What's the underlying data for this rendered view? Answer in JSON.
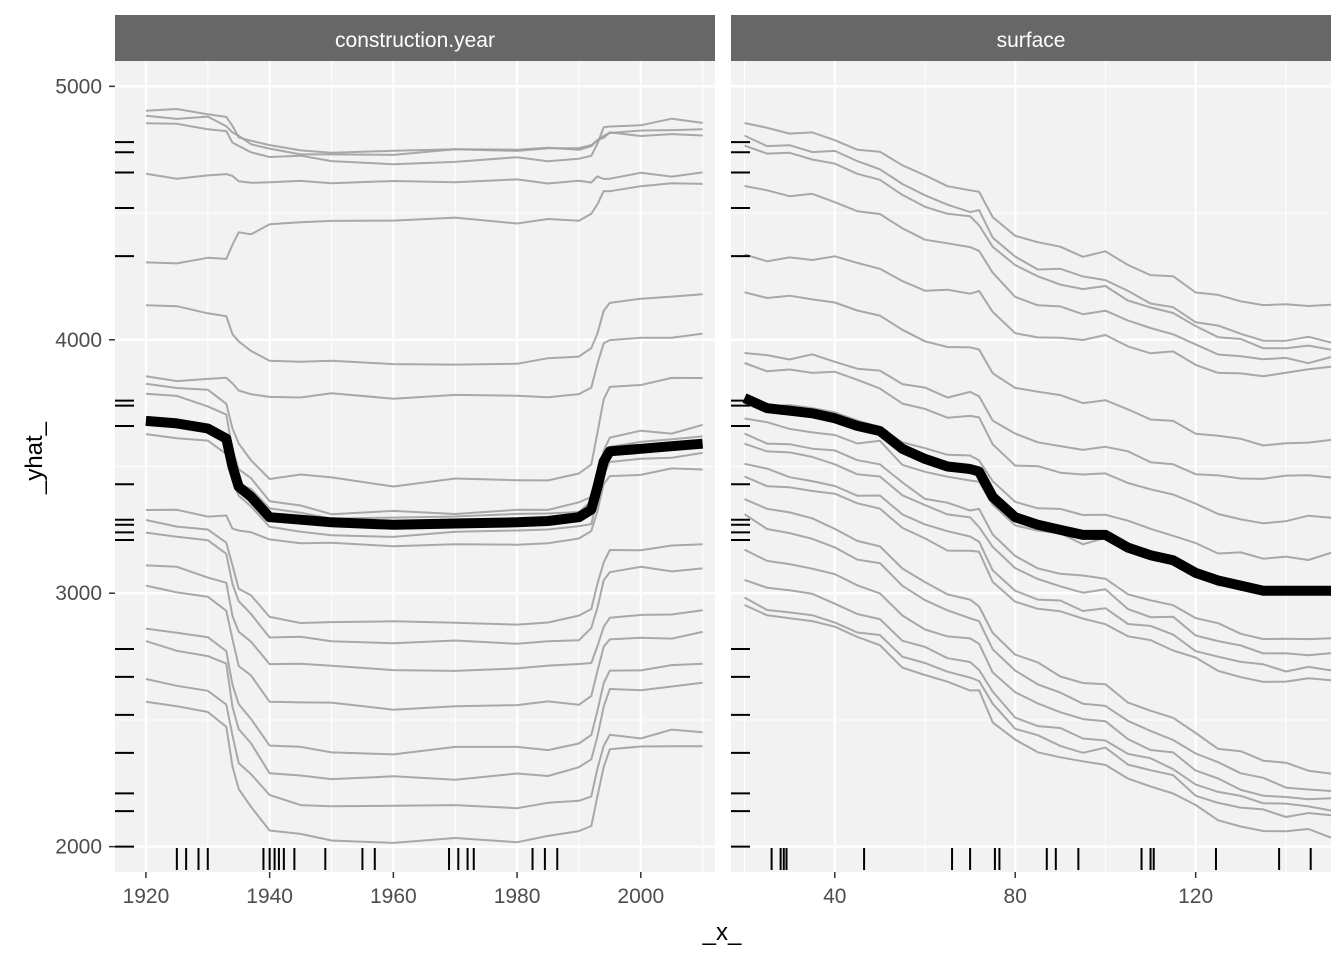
{
  "colors": {
    "panel_bg": "#f2f2f2",
    "strip_bg": "#676767",
    "strip_text": "#ffffff",
    "grid": "#ffffff",
    "ice_line": "#a0a0a0",
    "pdp_line": "#000000",
    "axis_text": "#4d4d4d",
    "axis_title": "#000000"
  },
  "chart_data": [
    {
      "type": "line",
      "panel": "construction.year",
      "xlabel": "_x_",
      "ylabel": "_yhat_",
      "xlim": [
        1915,
        2012
      ],
      "ylim": [
        1900,
        5100
      ],
      "x_ticks": [
        1920,
        1940,
        1960,
        1980,
        2000
      ],
      "y_ticks": [
        2000,
        3000,
        4000,
        5000
      ],
      "x_points": [
        1920,
        1925,
        1930,
        1933,
        1934,
        1935,
        1937,
        1940,
        1945,
        1950,
        1960,
        1970,
        1980,
        1985,
        1990,
        1992,
        1993,
        1994,
        1995,
        2000,
        2005,
        2010
      ],
      "pdp": [
        3680,
        3670,
        3650,
        3610,
        3500,
        3420,
        3380,
        3300,
        3290,
        3280,
        3270,
        3275,
        3280,
        3285,
        3300,
        3330,
        3420,
        3520,
        3560,
        3570,
        3580,
        3590
      ],
      "ice_start": [
        4900,
        4880,
        4850,
        4650,
        4300,
        4130,
        3850,
        3820,
        3780,
        3680,
        3620,
        3320,
        3280,
        3230,
        3100,
        3020,
        2850,
        2800,
        2650,
        2560
      ],
      "ice_mid": [
        4750,
        4740,
        4710,
        4620,
        4470,
        3910,
        3780,
        3440,
        3320,
        3300,
        3230,
        3200,
        2880,
        2800,
        2700,
        2550,
        2380,
        2270,
        2160,
        2020
      ],
      "ice_end": [
        4810,
        4840,
        4870,
        4650,
        4610,
        4180,
        4030,
        3860,
        3650,
        3610,
        3550,
        3490,
        3200,
        3110,
        2920,
        2840,
        2720,
        2650,
        2460,
        2410
      ],
      "rug_x": [
        1925,
        1926.5,
        1928.5,
        1930,
        1939,
        1940,
        1940.8,
        1941.5,
        1942.3,
        1944,
        1949,
        1955,
        1957,
        1969,
        1970.5,
        1972,
        1973,
        1982.5,
        1984.5,
        1986.5
      ],
      "rug_y": [
        4780,
        4740,
        4660,
        4520,
        4330,
        3760,
        3740,
        3660,
        3430,
        3290,
        3270,
        3240,
        3210,
        2780,
        2670,
        2520,
        2370,
        2210,
        2140,
        2000
      ]
    },
    {
      "type": "line",
      "panel": "surface",
      "xlabel": "_x_",
      "ylabel": "_yhat_",
      "xlim": [
        17,
        150
      ],
      "ylim": [
        1900,
        5100
      ],
      "x_ticks": [
        40,
        80,
        120
      ],
      "y_ticks": [
        2000,
        3000,
        4000,
        5000
      ],
      "x_points": [
        20,
        25,
        30,
        35,
        40,
        45,
        50,
        55,
        60,
        65,
        70,
        72,
        75,
        80,
        85,
        90,
        95,
        100,
        105,
        110,
        115,
        120,
        125,
        130,
        135,
        140,
        145,
        150
      ],
      "pdp": [
        3770,
        3730,
        3720,
        3710,
        3690,
        3660,
        3640,
        3570,
        3530,
        3500,
        3490,
        3480,
        3380,
        3300,
        3270,
        3250,
        3230,
        3230,
        3180,
        3150,
        3130,
        3080,
        3050,
        3030,
        3010,
        3010,
        3010,
        3010
      ],
      "ice_start": [
        4870,
        4820,
        4780,
        4620,
        4350,
        4200,
        3960,
        3920,
        3770,
        3700,
        3640,
        3600,
        3520,
        3470,
        3380,
        3320,
        3180,
        3060,
        2990,
        2960
      ],
      "ice_end": [
        4130,
        4000,
        3960,
        3920,
        3900,
        3600,
        3470,
        3300,
        3150,
        3020,
        2820,
        2750,
        2700,
        2650,
        2300,
        2220,
        2180,
        2150,
        2120,
        2050
      ],
      "rug_x": [
        26,
        28,
        28.7,
        29.3,
        46.5,
        66,
        70,
        75.5,
        76.5,
        87,
        89,
        94,
        108,
        110,
        110.7,
        124.5,
        138.5,
        145.5
      ],
      "rug_y": [
        4780,
        4740,
        4660,
        4520,
        4330,
        3760,
        3740,
        3660,
        3430,
        3290,
        3270,
        3240,
        3210,
        2780,
        2670,
        2520,
        2370,
        2210,
        2140,
        2000
      ]
    }
  ]
}
